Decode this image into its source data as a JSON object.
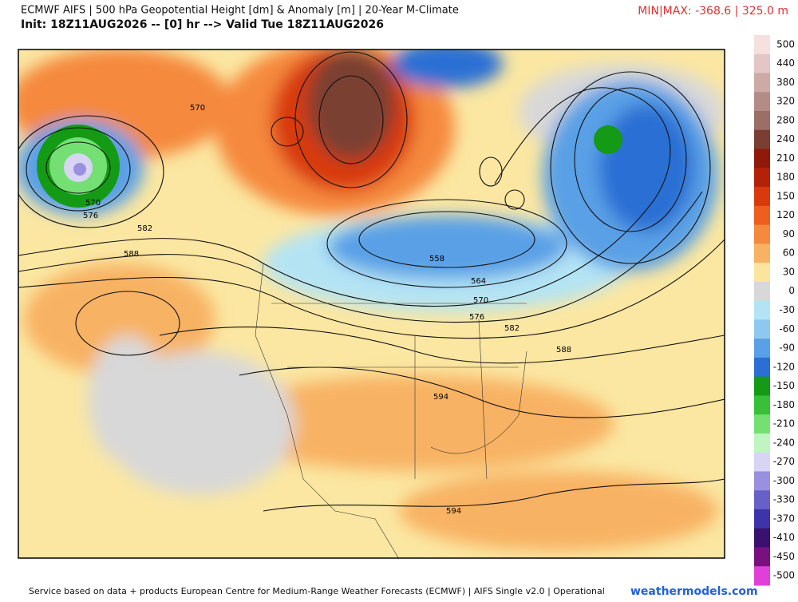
{
  "header": {
    "title": "ECMWF AIFS | 500 hPa Geopotential Height [dm] & Anomaly [m] | 20-Year M-Climate",
    "subtitle": "Init: 18Z11AUG2026 -- [0] hr --> Valid Tue 18Z11AUG2026",
    "minmax": "MIN|MAX: -368.6 | 325.0 m"
  },
  "colorbar": {
    "labels": [
      500,
      440,
      380,
      320,
      280,
      240,
      210,
      180,
      150,
      120,
      90,
      60,
      30,
      0,
      -30,
      -60,
      -90,
      -120,
      -150,
      -180,
      -210,
      -240,
      -270,
      -300,
      -330,
      -370,
      -410,
      -450,
      -500
    ],
    "colors": [
      "#f6e0e0",
      "#e3c6c6",
      "#cdaaa6",
      "#b48c86",
      "#9b6e66",
      "#7a3f32",
      "#8f1a0c",
      "#b32208",
      "#d83a0c",
      "#ee5e1e",
      "#f5893e",
      "#f8b264",
      "#fbe59e",
      "#d8d8d8",
      "#b4e4f4",
      "#8ec8ee",
      "#5aa0e6",
      "#2c6fd4",
      "#149a14",
      "#38c038",
      "#74e074",
      "#c0f4c0",
      "#d8d4f4",
      "#9a90e0",
      "#6660c8",
      "#3c34a8",
      "#3a1070",
      "#7a1080",
      "#e040d8"
    ]
  },
  "contour_labels": [
    "570",
    "570",
    "576",
    "582",
    "588",
    "558",
    "564",
    "570",
    "576",
    "582",
    "588",
    "594",
    "594"
  ],
  "footer": {
    "credit": "Service based on data + products European Centre for Medium-Range Weather Forecasts (ECMWF) | AIFS Single v2.0 | Operational",
    "site": "weathermodels.com"
  }
}
